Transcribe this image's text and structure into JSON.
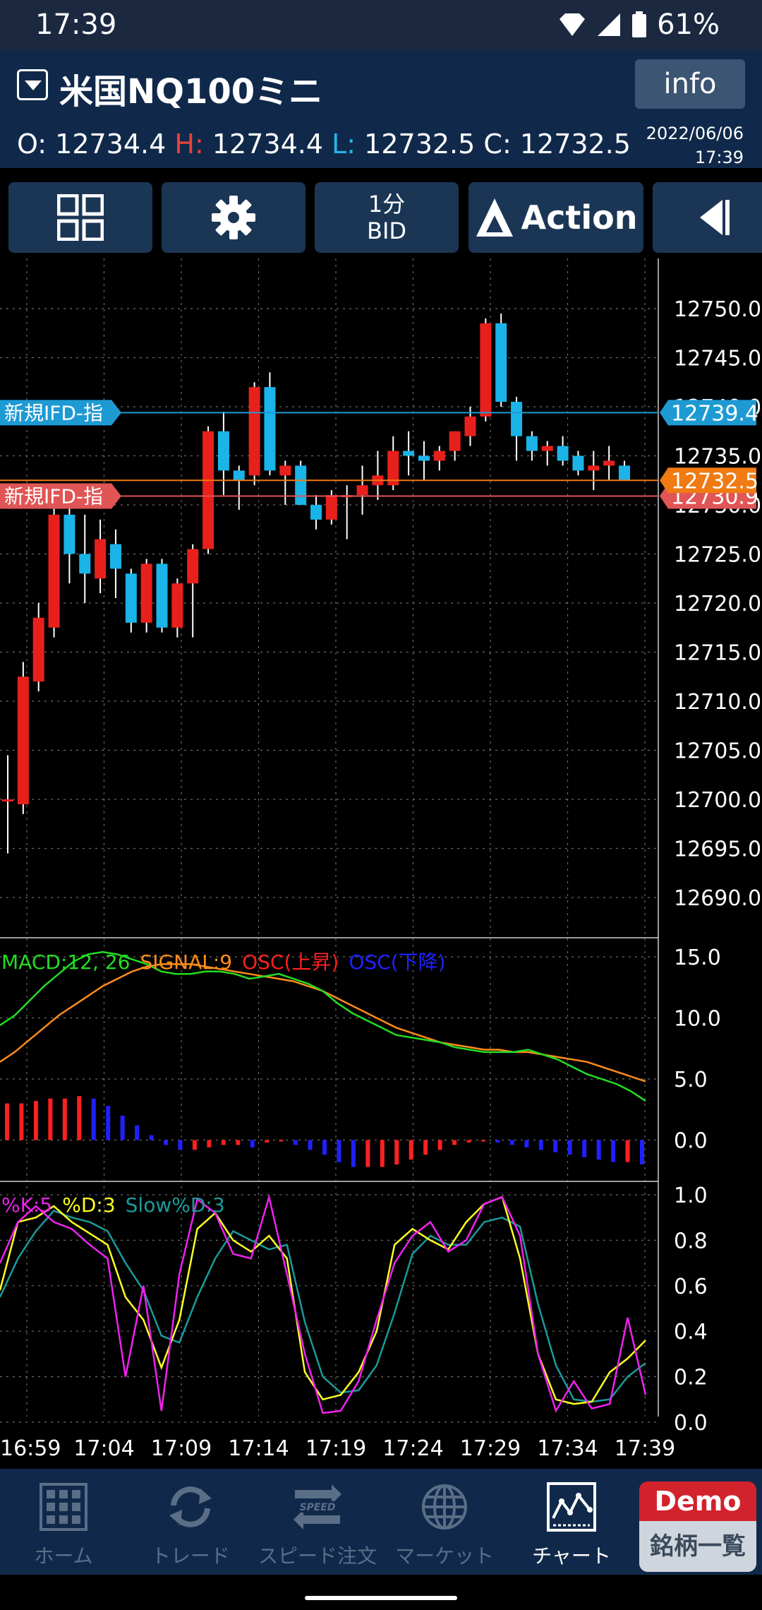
{
  "status": {
    "time": "17:39",
    "battery": "61%"
  },
  "header": {
    "symbol": "米国NQ100ミニ",
    "info_label": "info",
    "ohlc": {
      "o_label": "O:",
      "o": "12734.4",
      "h_label": "H:",
      "h": "12734.4",
      "l_label": "L:",
      "l": "12732.5",
      "c_label": "C:",
      "c": "12732.5"
    },
    "date": "2022/06/06",
    "time": "17:39"
  },
  "toolbar": {
    "timeframe": "1分",
    "price_type": "BID",
    "action_label": "Action"
  },
  "chart_data": [
    {
      "type": "candlestick",
      "price_axis_ticks": [
        "12750.0",
        "12745.0",
        "12740.0",
        "12735.0",
        "12730.0",
        "12725.0",
        "12720.0",
        "12715.0",
        "12710.0",
        "12705.0",
        "12700.0",
        "12695.0",
        "12690.0"
      ],
      "ylim": [
        12686,
        12756
      ],
      "time_ticks": [
        "16:59",
        "17:04",
        "17:09",
        "17:14",
        "17:19",
        "17:24",
        "17:29",
        "17:34",
        "17:39"
      ],
      "up_color": "#e8201c",
      "down_color": "#1ab4e8",
      "candles": [
        {
          "o": 12700.0,
          "h": 12704.5,
          "l": 12694.5,
          "c": 12700.0
        },
        {
          "o": 12699.5,
          "h": 12714.0,
          "l": 12698.5,
          "c": 12712.5
        },
        {
          "o": 12712.0,
          "h": 12720.0,
          "l": 12711.0,
          "c": 12718.5
        },
        {
          "o": 12717.5,
          "h": 12732.0,
          "l": 12716.5,
          "c": 12729.0
        },
        {
          "o": 12729.0,
          "h": 12731.0,
          "l": 12722.0,
          "c": 12725.0
        },
        {
          "o": 12725.0,
          "h": 12729.0,
          "l": 12720.0,
          "c": 12723.0
        },
        {
          "o": 12722.5,
          "h": 12728.5,
          "l": 12721.0,
          "c": 12726.5
        },
        {
          "o": 12726.0,
          "h": 12727.5,
          "l": 12720.5,
          "c": 12723.5
        },
        {
          "o": 12723.0,
          "h": 12723.5,
          "l": 12717.0,
          "c": 12718.0
        },
        {
          "o": 12718.0,
          "h": 12724.5,
          "l": 12717.0,
          "c": 12724.0
        },
        {
          "o": 12724.0,
          "h": 12724.5,
          "l": 12717.0,
          "c": 12717.5
        },
        {
          "o": 12717.5,
          "h": 12722.5,
          "l": 12716.5,
          "c": 12722.0
        },
        {
          "o": 12722.0,
          "h": 12726.0,
          "l": 12716.5,
          "c": 12725.5
        },
        {
          "o": 12725.5,
          "h": 12738.0,
          "l": 12725.0,
          "c": 12737.5
        },
        {
          "o": 12737.5,
          "h": 12739.5,
          "l": 12731.0,
          "c": 12733.5
        },
        {
          "o": 12733.5,
          "h": 12734.0,
          "l": 12729.5,
          "c": 12732.5
        },
        {
          "o": 12733.0,
          "h": 12742.5,
          "l": 12732.0,
          "c": 12742.0
        },
        {
          "o": 12742.0,
          "h": 12743.5,
          "l": 12733.0,
          "c": 12733.5
        },
        {
          "o": 12733.0,
          "h": 12734.5,
          "l": 12730.0,
          "c": 12734.0
        },
        {
          "o": 12734.0,
          "h": 12734.5,
          "l": 12730.0,
          "c": 12730.0
        },
        {
          "o": 12730.0,
          "h": 12731.0,
          "l": 12727.5,
          "c": 12728.5
        },
        {
          "o": 12728.5,
          "h": 12731.5,
          "l": 12728.0,
          "c": 12731.0
        },
        {
          "o": 12731.0,
          "h": 12732.0,
          "l": 12726.5,
          "c": 12731.0
        },
        {
          "o": 12731.0,
          "h": 12734.0,
          "l": 12729.0,
          "c": 12732.0
        },
        {
          "o": 12732.0,
          "h": 12735.5,
          "l": 12730.5,
          "c": 12733.0
        },
        {
          "o": 12732.0,
          "h": 12737.0,
          "l": 12731.5,
          "c": 12735.5
        },
        {
          "o": 12735.5,
          "h": 12737.5,
          "l": 12733.0,
          "c": 12735.0
        },
        {
          "o": 12735.0,
          "h": 12736.5,
          "l": 12732.5,
          "c": 12734.5
        },
        {
          "o": 12734.5,
          "h": 12736.0,
          "l": 12733.5,
          "c": 12735.5
        },
        {
          "o": 12735.5,
          "h": 12737.5,
          "l": 12734.5,
          "c": 12737.5
        },
        {
          "o": 12737.0,
          "h": 12740.0,
          "l": 12736.0,
          "c": 12739.0
        },
        {
          "o": 12739.0,
          "h": 12749.0,
          "l": 12738.5,
          "c": 12748.5
        },
        {
          "o": 12748.5,
          "h": 12749.5,
          "l": 12740.0,
          "c": 12740.5
        },
        {
          "o": 12740.5,
          "h": 12741.0,
          "l": 12734.5,
          "c": 12737.0
        },
        {
          "o": 12737.0,
          "h": 12737.5,
          "l": 12734.5,
          "c": 12735.5
        },
        {
          "o": 12735.5,
          "h": 12736.5,
          "l": 12734.0,
          "c": 12736.0
        },
        {
          "o": 12736.0,
          "h": 12737.0,
          "l": 12734.0,
          "c": 12734.5
        },
        {
          "o": 12735.0,
          "h": 12735.5,
          "l": 12733.0,
          "c": 12733.5
        },
        {
          "o": 12733.5,
          "h": 12735.5,
          "l": 12731.5,
          "c": 12734.0
        },
        {
          "o": 12734.0,
          "h": 12736.0,
          "l": 12732.5,
          "c": 12734.5
        },
        {
          "o": 12734.0,
          "h": 12734.5,
          "l": 12732.5,
          "c": 12732.5
        }
      ],
      "price_lines": [
        {
          "price": 12739.4,
          "label": "新規IFD-指",
          "tag": "12739.4",
          "color": "#1e9ad3"
        },
        {
          "price": 12732.5,
          "label": "",
          "tag": "12732.5",
          "color": "#f07b12"
        },
        {
          "price": 12730.9,
          "label": "新規IFD-指",
          "tag": "12730.9",
          "color": "#e05555"
        }
      ]
    },
    {
      "type": "line",
      "legend": [
        "MACD:12, 26",
        "SIGNAL:9",
        "OSC(上昇)",
        "OSC(下降)"
      ],
      "axis_ticks": [
        "15.0",
        "10.0",
        "5.0",
        "0.0"
      ],
      "ylim": [
        -2.5,
        16.5
      ],
      "colors": {
        "macd": "#22dd22",
        "signal": "#ff8c1a",
        "osc_up": "#ff2020",
        "osc_down": "#2020ff"
      },
      "macd": [
        9.4,
        10.2,
        11.4,
        12.6,
        13.6,
        14.6,
        15.2,
        15.4,
        15.2,
        14.8,
        14.4,
        13.8,
        13.6,
        13.6,
        13.8,
        13.8,
        13.6,
        13.2,
        13.4,
        13.6,
        13.2,
        12.8,
        12.2,
        11.2,
        10.4,
        9.8,
        9.2,
        8.6,
        8.4,
        8.2,
        8.0,
        7.6,
        7.4,
        7.2,
        7.2,
        7.2,
        7.4,
        7.0,
        6.6,
        6.0,
        5.4,
        5.0,
        4.6,
        4.0,
        3.2
      ],
      "signal": [
        6.4,
        7.2,
        8.2,
        9.2,
        10.2,
        11.0,
        11.8,
        12.6,
        13.2,
        13.8,
        14.2,
        14.4,
        14.4,
        14.4,
        14.2,
        14.0,
        13.8,
        13.6,
        13.4,
        13.2,
        13.0,
        12.6,
        12.2,
        11.6,
        11.0,
        10.4,
        9.8,
        9.2,
        8.8,
        8.4,
        8.0,
        7.8,
        7.6,
        7.4,
        7.4,
        7.2,
        7.2,
        7.0,
        6.8,
        6.6,
        6.4,
        6.0,
        5.6,
        5.2,
        4.8
      ],
      "osc": [
        3.0,
        3.0,
        3.2,
        3.4,
        3.4,
        3.6,
        3.4,
        2.8,
        2.0,
        1.2,
        0.4,
        -0.4,
        -0.8,
        -0.8,
        -0.6,
        -0.4,
        -0.4,
        -0.6,
        -0.2,
        0.0,
        -0.4,
        -0.8,
        -1.2,
        -1.8,
        -2.2,
        -2.2,
        -2.2,
        -2.0,
        -1.6,
        -1.2,
        -0.8,
        -0.4,
        -0.2,
        0.0,
        -0.2,
        -0.4,
        -0.6,
        -0.8,
        -1.0,
        -1.2,
        -1.4,
        -1.6,
        -1.8,
        -1.8,
        -2.0
      ]
    },
    {
      "type": "line",
      "legend": [
        "%K:5",
        "%D:3",
        "Slow%D:3"
      ],
      "axis_ticks": [
        "1.0",
        "0.8",
        "0.6",
        "0.4",
        "0.2",
        "0.0"
      ],
      "ylim": [
        0,
        1
      ],
      "colors": {
        "k": "#ee22ee",
        "d": "#ffff22",
        "slow": "#1a9a9a"
      },
      "k": [
        0.7,
        0.88,
        0.95,
        0.88,
        0.85,
        0.78,
        0.72,
        0.2,
        0.6,
        0.05,
        0.65,
        0.98,
        0.92,
        0.74,
        0.72,
        0.99,
        0.65,
        0.3,
        0.04,
        0.05,
        0.18,
        0.45,
        0.7,
        0.82,
        0.88,
        0.75,
        0.8,
        0.96,
        0.99,
        0.82,
        0.3,
        0.05,
        0.18,
        0.06,
        0.08,
        0.46,
        0.12
      ],
      "d": [
        0.58,
        0.88,
        0.9,
        0.95,
        0.88,
        0.83,
        0.78,
        0.55,
        0.45,
        0.24,
        0.45,
        0.85,
        0.92,
        0.8,
        0.75,
        0.82,
        0.72,
        0.22,
        0.1,
        0.12,
        0.22,
        0.4,
        0.78,
        0.85,
        0.8,
        0.76,
        0.88,
        0.96,
        0.99,
        0.72,
        0.3,
        0.1,
        0.08,
        0.09,
        0.22,
        0.28,
        0.36
      ],
      "slow": [
        0.55,
        0.72,
        0.84,
        0.93,
        0.9,
        0.88,
        0.84,
        0.7,
        0.58,
        0.38,
        0.35,
        0.55,
        0.72,
        0.84,
        0.8,
        0.76,
        0.78,
        0.44,
        0.2,
        0.13,
        0.14,
        0.25,
        0.48,
        0.74,
        0.82,
        0.78,
        0.78,
        0.88,
        0.9,
        0.86,
        0.52,
        0.25,
        0.1,
        0.09,
        0.1,
        0.2,
        0.26
      ]
    }
  ],
  "nav": [
    {
      "label": "ホーム",
      "icon": "home-grid-icon"
    },
    {
      "label": "トレード",
      "icon": "trade-refresh-icon"
    },
    {
      "label": "スピード注文",
      "icon": "speed-order-icon"
    },
    {
      "label": "マーケット",
      "icon": "globe-icon"
    },
    {
      "label": "チャート",
      "icon": "chart-icon",
      "active": true
    }
  ],
  "demo": {
    "top": "Demo",
    "bottom": "銘柄一覧"
  }
}
